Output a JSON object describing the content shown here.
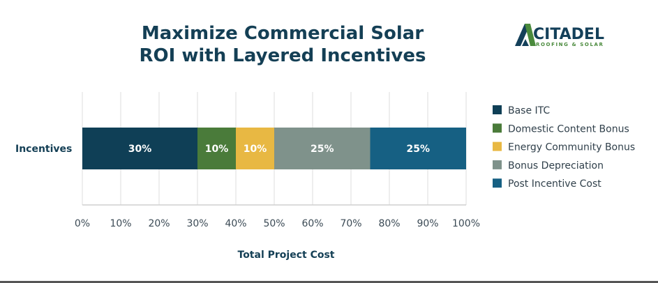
{
  "chart_data": {
    "type": "bar",
    "orientation": "horizontal",
    "stacked": true,
    "title": [
      "Maximize Commercial Solar",
      "ROI with Layered Incentives"
    ],
    "categories": [
      "Incentives"
    ],
    "series": [
      {
        "name": "Base ITC",
        "values": [
          30
        ],
        "label": "30%",
        "color": "#0f3f56"
      },
      {
        "name": "Domestic Content Bonus",
        "values": [
          10
        ],
        "label": "10%",
        "color": "#4a7b3a"
      },
      {
        "name": "Energy Community Bonus",
        "values": [
          10
        ],
        "label": "10%",
        "color": "#e8b843"
      },
      {
        "name": "Bonus Depreciation",
        "values": [
          25
        ],
        "label": "25%",
        "color": "#7f928b"
      },
      {
        "name": "Post Incentive Cost",
        "values": [
          25
        ],
        "label": "25%",
        "color": "#166083"
      }
    ],
    "xlabel": "Total Project Cost",
    "ylabel": "",
    "xlim": [
      0,
      100
    ],
    "xticks": [
      "0%",
      "10%",
      "20%",
      "30%",
      "40%",
      "50%",
      "60%",
      "70%",
      "80%",
      "90%",
      "100%"
    ],
    "grid": true,
    "legend": "right"
  },
  "logo": {
    "name": "CITADEL",
    "tagline": "ROOFING & SOLAR",
    "colors": [
      "#14405a",
      "#4a8a3c"
    ]
  }
}
